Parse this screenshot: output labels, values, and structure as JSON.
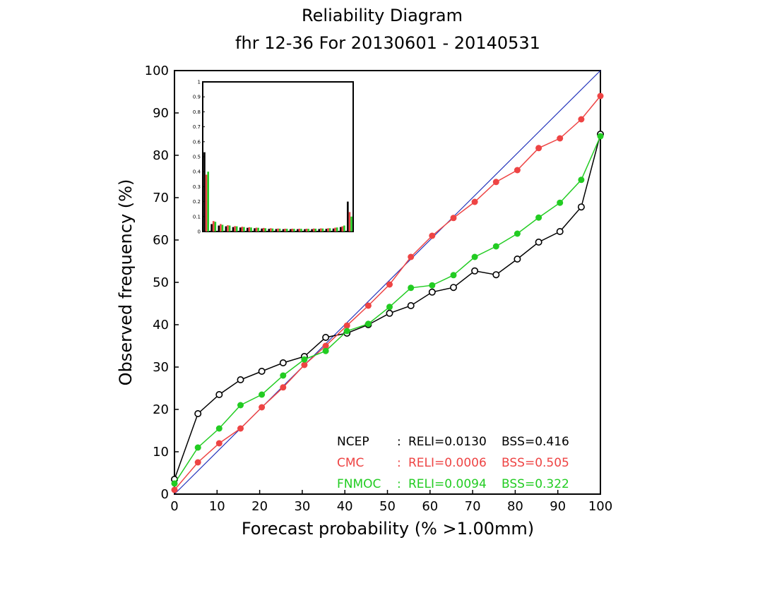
{
  "chart_data": {
    "type": "line",
    "title": "Reliability Diagram",
    "subtitle": "fhr 12-36 For 20130601 - 20140531",
    "xlabel": "Forecast probability (% >1.00mm)",
    "ylabel": "Observed frequency (%)",
    "xlim": [
      0,
      100
    ],
    "ylim": [
      0,
      100
    ],
    "x_ticks": [
      "0",
      "10",
      "20",
      "30",
      "40",
      "50",
      "60",
      "70",
      "80",
      "90",
      "100"
    ],
    "y_ticks": [
      "0",
      "10",
      "20",
      "30",
      "40",
      "50",
      "60",
      "70",
      "80",
      "90",
      "100"
    ],
    "x": [
      0,
      5.5,
      10.5,
      15.5,
      20.5,
      25.5,
      30.5,
      35.5,
      40.5,
      45.5,
      50.5,
      55.5,
      60.5,
      65.5,
      70.5,
      75.5,
      80.5,
      85.5,
      90.5,
      95.5,
      100
    ],
    "diagonal_color": "#2233bb",
    "series": [
      {
        "name": "NCEP",
        "color": "#000000",
        "marker": "open-circle",
        "values": [
          3.5,
          19,
          23.5,
          27,
          29,
          31,
          32.5,
          37,
          38,
          40,
          42.7,
          44.5,
          47.7,
          48.8,
          52.7,
          51.8,
          55.5,
          59.5,
          62,
          67.8,
          85
        ]
      },
      {
        "name": "CMC",
        "color": "#ee4444",
        "marker": "filled-circle",
        "values": [
          1,
          7.5,
          12,
          15.5,
          20.5,
          25.2,
          30.5,
          35,
          39.8,
          44.5,
          49.5,
          56,
          61,
          65.2,
          69,
          73.7,
          76.5,
          81.7,
          84,
          88.5,
          94
        ]
      },
      {
        "name": "FNMOC",
        "color": "#22cc22",
        "marker": "filled-circle",
        "values": [
          2.5,
          11,
          15.5,
          21,
          23.5,
          28,
          31.8,
          33.8,
          38.5,
          40.2,
          44.2,
          48.7,
          49.3,
          51.7,
          56,
          58.5,
          61.5,
          65.3,
          68.8,
          74.2,
          84.5
        ]
      }
    ],
    "stats": [
      {
        "model": "NCEP",
        "sep": ":",
        "reli": "RELI=0.0130",
        "bss": "BSS=0.416",
        "color": "#000000"
      },
      {
        "model": "CMC",
        "sep": ":",
        "reli": "RELI=0.0006",
        "bss": "BSS=0.505",
        "color": "#ee4444"
      },
      {
        "model": "FNMOC",
        "sep": ":",
        "reli": "RELI=0.0094",
        "bss": "BSS=0.322",
        "color": "#22cc22"
      }
    ],
    "inset": {
      "type": "bar",
      "ylim": [
        0,
        1
      ],
      "y_ticks": [
        "0",
        "0.1",
        "0.2",
        "0.3",
        "0.4",
        "0.5",
        "0.6",
        "0.7",
        "0.8",
        "0.9",
        "1"
      ],
      "series": [
        {
          "name": "NCEP",
          "color": "#000000",
          "values": [
            0.53,
            0.05,
            0.04,
            0.035,
            0.03,
            0.027,
            0.025,
            0.022,
            0.02,
            0.018,
            0.017,
            0.016,
            0.016,
            0.016,
            0.016,
            0.016,
            0.017,
            0.018,
            0.02,
            0.03,
            0.2
          ]
        },
        {
          "name": "CMC",
          "color": "#ee4444",
          "values": [
            0.38,
            0.07,
            0.05,
            0.042,
            0.036,
            0.032,
            0.029,
            0.026,
            0.024,
            0.022,
            0.02,
            0.019,
            0.019,
            0.019,
            0.019,
            0.02,
            0.021,
            0.022,
            0.026,
            0.035,
            0.13
          ]
        },
        {
          "name": "FNMOC",
          "color": "#22cc22",
          "values": [
            0.4,
            0.065,
            0.045,
            0.04,
            0.035,
            0.03,
            0.027,
            0.025,
            0.022,
            0.02,
            0.019,
            0.018,
            0.018,
            0.018,
            0.018,
            0.019,
            0.02,
            0.022,
            0.027,
            0.04,
            0.1
          ]
        }
      ]
    }
  }
}
